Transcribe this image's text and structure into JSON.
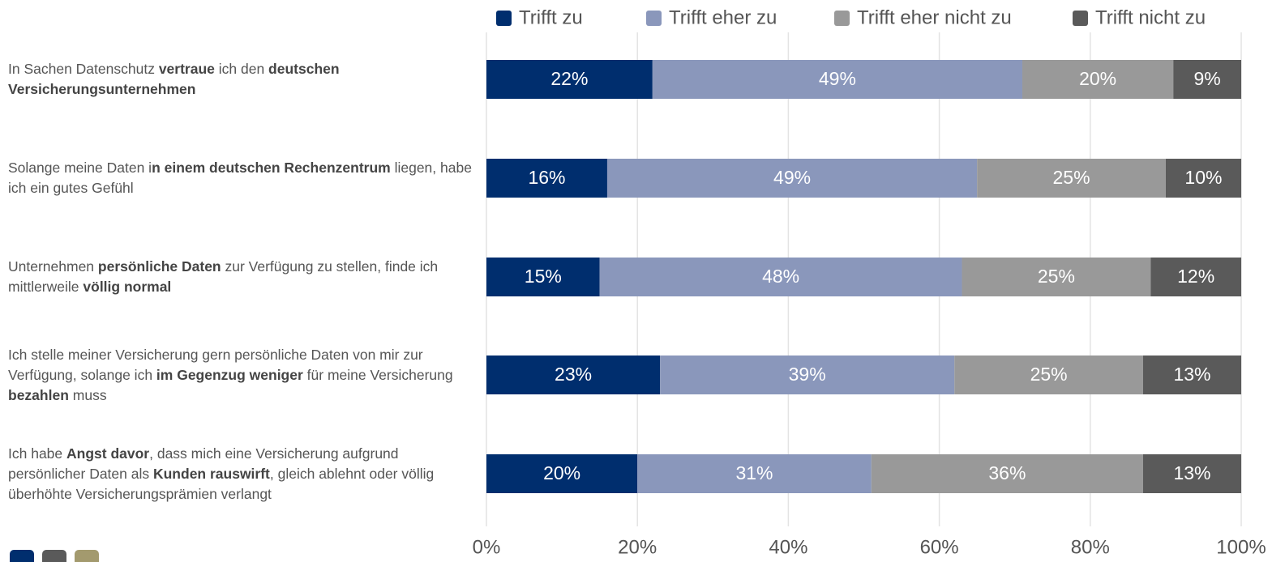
{
  "chart_data": {
    "type": "stacked_bar_horizontal",
    "categories": [
      [
        {
          "text": "In Sachen Datenschutz "
        },
        {
          "text": "vertraue",
          "bold": true
        },
        {
          "text": " ich den "
        },
        {
          "text": "deutschen Versicherungsunternehmen",
          "bold": true
        }
      ],
      [
        {
          "text": "Solange meine Daten i"
        },
        {
          "text": "n einem deutschen Rechenzentrum",
          "bold": true
        },
        {
          "text": " liegen, habe ich ein gutes Gefühl"
        }
      ],
      [
        {
          "text": "Unternehmen "
        },
        {
          "text": "persönliche Daten",
          "bold": true
        },
        {
          "text": " zur Verfügung zu stellen, finde ich mittlerweile "
        },
        {
          "text": "völlig normal",
          "bold": true
        }
      ],
      [
        {
          "text": "Ich stelle meiner Versicherung gern persönliche Daten von mir zur Verfügung, solange ich "
        },
        {
          "text": "im Gegenzug weniger",
          "bold": true
        },
        {
          "text": " für meine Versicherung "
        },
        {
          "text": "bezahlen",
          "bold": true
        },
        {
          "text": " muss"
        }
      ],
      [
        {
          "text": "Ich habe "
        },
        {
          "text": "Angst davor",
          "bold": true
        },
        {
          "text": ", dass mich eine Versicherung aufgrund persönlicher Daten als "
        },
        {
          "text": "Kunden rauswirft",
          "bold": true
        },
        {
          "text": ", gleich ablehnt oder völlig überhöhte Versicherungsprämien verlangt"
        }
      ]
    ],
    "series": [
      {
        "name": "Trifft zu",
        "color": "#002e6e",
        "values": [
          22,
          16,
          15,
          23,
          20
        ],
        "value_labels": [
          "22%",
          "16%",
          "15%",
          "23%",
          "20%"
        ]
      },
      {
        "name": "Trifft eher zu",
        "color": "#8a97bb",
        "values": [
          49,
          49,
          48,
          39,
          31
        ],
        "value_labels": [
          "49%",
          "49%",
          "48%",
          "39%",
          "31%"
        ]
      },
      {
        "name": "Trifft eher nicht zu",
        "color": "#999999",
        "values": [
          20,
          25,
          25,
          25,
          36
        ],
        "value_labels": [
          "20%",
          "25%",
          "25%",
          "25%",
          "36%"
        ]
      },
      {
        "name": "Trifft nicht zu",
        "color": "#5a5a5a",
        "values": [
          9,
          10,
          12,
          13,
          13
        ],
        "value_labels": [
          "9%",
          "10%",
          "12%",
          "13%",
          "13%"
        ]
      }
    ],
    "xlim": [
      0,
      100
    ],
    "xticks": [
      {
        "value": 0,
        "label": "0%"
      },
      {
        "value": 20,
        "label": "20%"
      },
      {
        "value": 40,
        "label": "40%"
      },
      {
        "value": 60,
        "label": "60%"
      },
      {
        "value": 80,
        "label": "80%"
      },
      {
        "value": 100,
        "label": "100%"
      }
    ],
    "grid": true,
    "legend": "top"
  }
}
